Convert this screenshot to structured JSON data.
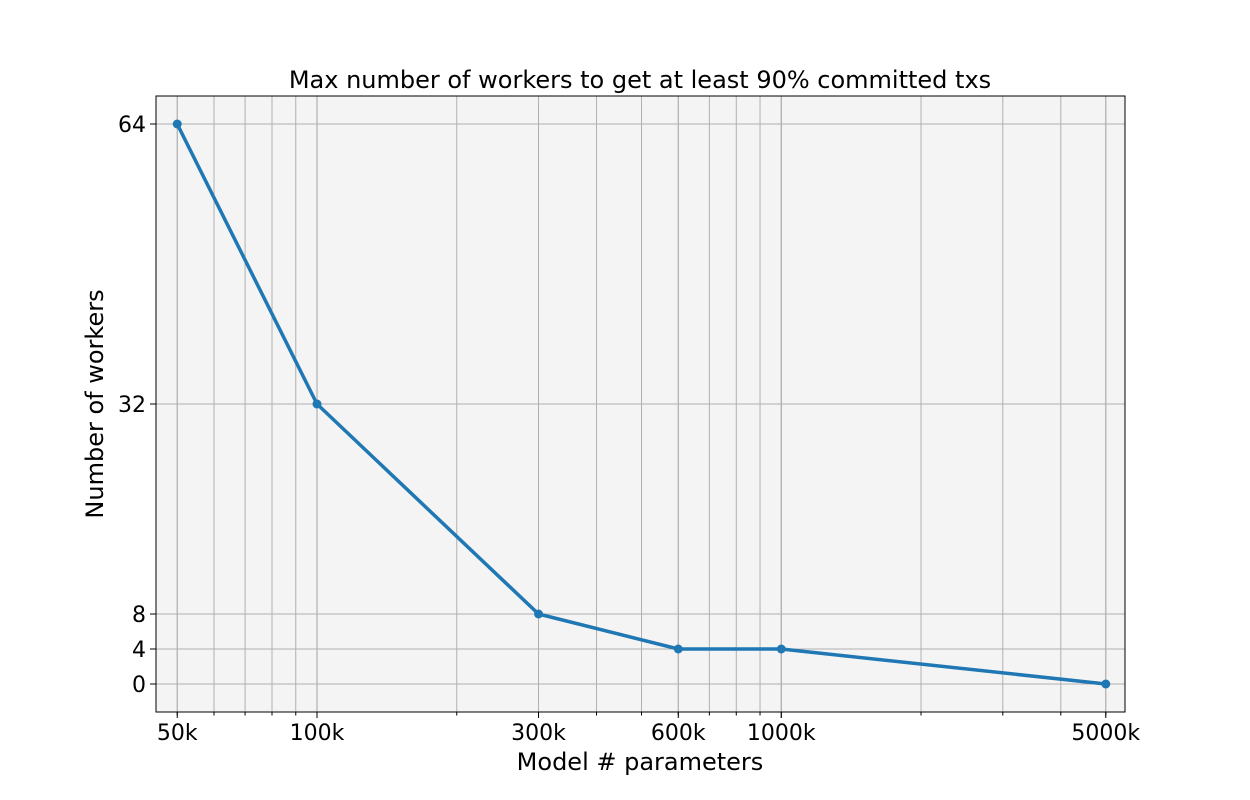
{
  "chart_data": {
    "type": "line",
    "title": "Max number of workers to get at least 90% committed txs",
    "xlabel": "Model # parameters",
    "ylabel": "Number of workers",
    "x_scale": "log",
    "x_values": [
      50000,
      100000,
      300000,
      600000,
      1000000,
      5000000
    ],
    "x_tick_labels": [
      "50k",
      "100k",
      "300k",
      "600k",
      "1000k",
      "5000k"
    ],
    "xlim": [
      45000,
      5500000
    ],
    "y_ticks": [
      0,
      4,
      8,
      32,
      64
    ],
    "ylim": [
      -3.2,
      67.2
    ],
    "series": [
      {
        "values": [
          64,
          32,
          8,
          4,
          4,
          0
        ]
      }
    ],
    "grid": true,
    "colors": {
      "line": "#1f77b4",
      "plot_background": "#f4f4f4",
      "grid": "#b0b0b0"
    }
  }
}
